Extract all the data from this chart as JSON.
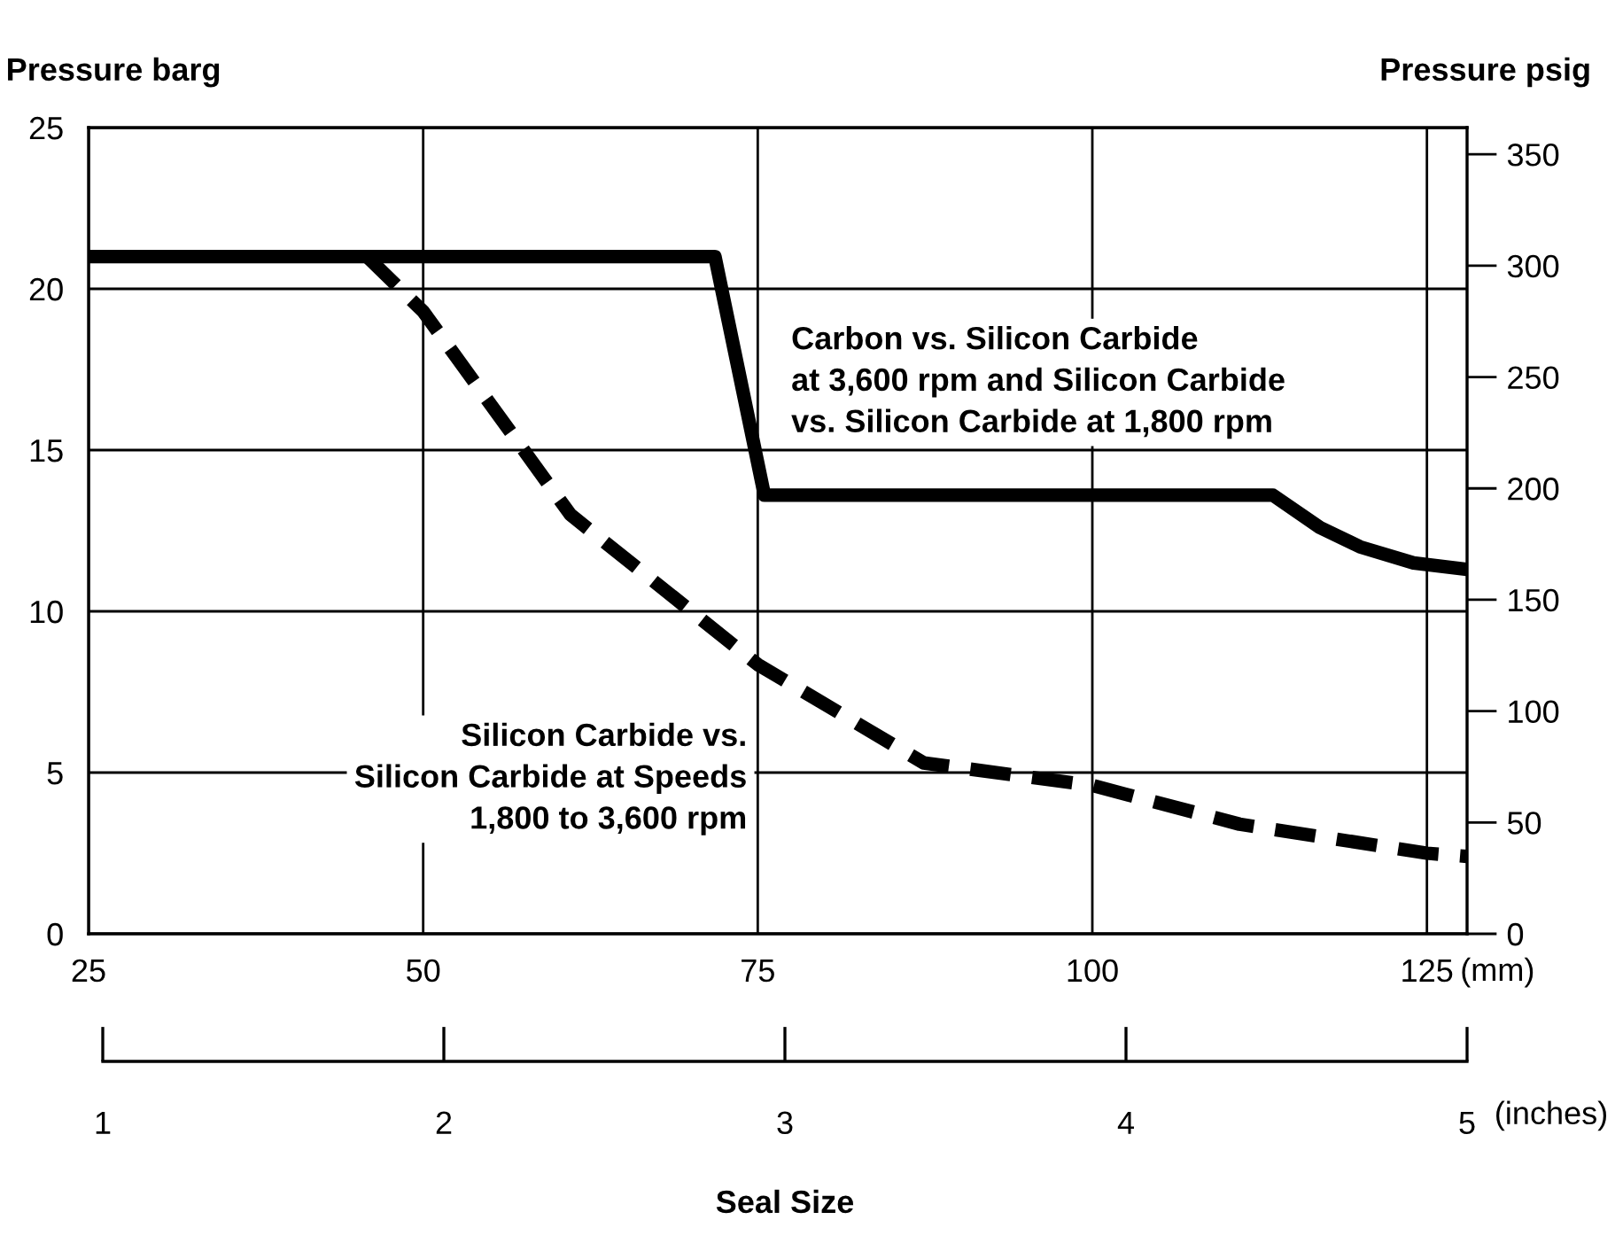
{
  "chart_data": {
    "type": "line",
    "xlabel": "Seal Size",
    "ylabel": "Pressure barg",
    "y2label": "Pressure psig",
    "xlim": [
      25,
      128
    ],
    "xticks": [
      25,
      50,
      75,
      100,
      125
    ],
    "ylim": [
      0,
      25
    ],
    "yticks": [
      0,
      5,
      10,
      15,
      20,
      25
    ],
    "y2lim": [
      0,
      362
    ],
    "y2ticks": [
      0,
      50,
      100,
      150,
      200,
      250,
      300,
      350
    ],
    "x2lim": [
      1,
      5
    ],
    "x2ticks": [
      1,
      2,
      3,
      4,
      5
    ],
    "grid": true,
    "legend": false,
    "marker": "none",
    "annotations": [
      "(mm)",
      "(inches)"
    ],
    "series": [
      {
        "name": "Carbon vs. Silicon Carbide\nat 3,600 rpm and Silicon Carbide\nvs. Silicon Carbide at 1,800 rpm",
        "color": "#000000",
        "line_style": "solid",
        "x": [
          25,
          71.8,
          75.5,
          113.5,
          117,
          120,
          124,
          128
        ],
        "values": [
          21,
          21,
          13.6,
          13.6,
          12.6,
          12.0,
          11.5,
          11.3
        ]
      },
      {
        "name": "Silicon Carbide vs.\nSilicon Carbide at Speeds\n1,800 to 3,600 rpm",
        "color": "#000000",
        "line_style": "dashed",
        "x": [
          45.8,
          50,
          61,
          75,
          87.4,
          100,
          111,
          125,
          128
        ],
        "values": [
          21,
          19.3,
          13.0,
          8.35,
          5.3,
          4.6,
          3.4,
          2.5,
          2.4
        ]
      }
    ]
  }
}
